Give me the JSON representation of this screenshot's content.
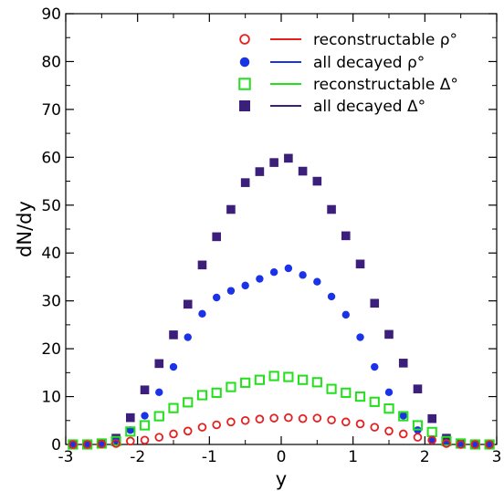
{
  "chart_data": {
    "type": "scatter",
    "xlabel": "y",
    "ylabel": "dN/dy",
    "xlim": [
      -3,
      3
    ],
    "ylim": [
      0,
      90
    ],
    "xticks": [
      "-3",
      "-2",
      "-1",
      "0",
      "1",
      "2",
      "3"
    ],
    "yticks": [
      "0",
      "10",
      "20",
      "30",
      "40",
      "50",
      "60",
      "70",
      "80",
      "90"
    ],
    "grid": false,
    "legend_position": "top-right",
    "series": [
      {
        "name": "all decayed Δ°",
        "marker": "filled-square",
        "color": "#3b1f7a",
        "points": [
          [
            -2.9,
            0.0
          ],
          [
            -2.7,
            0.0
          ],
          [
            -2.5,
            0.2
          ],
          [
            -2.3,
            1.3
          ],
          [
            -2.1,
            5.6
          ],
          [
            -1.9,
            11.4
          ],
          [
            -1.7,
            16.9
          ],
          [
            -1.5,
            22.9
          ],
          [
            -1.3,
            29.3
          ],
          [
            -1.1,
            37.5
          ],
          [
            -0.9,
            43.4
          ],
          [
            -0.7,
            49.1
          ],
          [
            -0.5,
            54.7
          ],
          [
            -0.3,
            57.0
          ],
          [
            -0.1,
            58.9
          ],
          [
            0.1,
            59.8
          ],
          [
            0.3,
            57.1
          ],
          [
            0.5,
            55.0
          ],
          [
            0.7,
            49.1
          ],
          [
            0.9,
            43.6
          ],
          [
            1.1,
            37.7
          ],
          [
            1.3,
            29.5
          ],
          [
            1.5,
            23.0
          ],
          [
            1.7,
            17.0
          ],
          [
            1.9,
            11.6
          ],
          [
            2.1,
            5.4
          ],
          [
            2.3,
            1.3
          ],
          [
            2.5,
            0.2
          ],
          [
            2.7,
            0.0
          ],
          [
            2.9,
            0.0
          ]
        ]
      },
      {
        "name": "all decayed ρ°",
        "marker": "filled-circle",
        "color": "#1a33e6",
        "points": [
          [
            -2.9,
            0.0
          ],
          [
            -2.7,
            0.0
          ],
          [
            -2.5,
            0.1
          ],
          [
            -2.3,
            0.9
          ],
          [
            -2.1,
            3.0
          ],
          [
            -1.9,
            6.0
          ],
          [
            -1.7,
            10.9
          ],
          [
            -1.5,
            16.2
          ],
          [
            -1.3,
            22.4
          ],
          [
            -1.1,
            27.3
          ],
          [
            -0.9,
            30.7
          ],
          [
            -0.7,
            32.1
          ],
          [
            -0.5,
            33.2
          ],
          [
            -0.3,
            34.6
          ],
          [
            -0.1,
            36.0
          ],
          [
            0.1,
            36.8
          ],
          [
            0.3,
            35.4
          ],
          [
            0.5,
            34.0
          ],
          [
            0.7,
            30.9
          ],
          [
            0.9,
            27.1
          ],
          [
            1.1,
            22.4
          ],
          [
            1.3,
            16.2
          ],
          [
            1.5,
            10.9
          ],
          [
            1.7,
            6.0
          ],
          [
            1.9,
            3.0
          ],
          [
            2.1,
            0.9
          ],
          [
            2.3,
            0.1
          ],
          [
            2.5,
            0.0
          ],
          [
            2.7,
            0.0
          ],
          [
            2.9,
            0.0
          ]
        ]
      },
      {
        "name": "reconstructable Δ°",
        "marker": "open-square",
        "color": "#22e01a",
        "points": [
          [
            -2.9,
            0.0
          ],
          [
            -2.7,
            0.0
          ],
          [
            -2.5,
            0.2
          ],
          [
            -2.3,
            0.7
          ],
          [
            -2.1,
            2.7
          ],
          [
            -1.9,
            4.0
          ],
          [
            -1.7,
            5.9
          ],
          [
            -1.5,
            7.6
          ],
          [
            -1.3,
            8.8
          ],
          [
            -1.1,
            10.3
          ],
          [
            -0.9,
            10.8
          ],
          [
            -0.7,
            12.0
          ],
          [
            -0.5,
            12.9
          ],
          [
            -0.3,
            13.5
          ],
          [
            -0.1,
            14.3
          ],
          [
            0.1,
            14.1
          ],
          [
            0.3,
            13.5
          ],
          [
            0.5,
            13.0
          ],
          [
            0.7,
            11.6
          ],
          [
            0.9,
            10.8
          ],
          [
            1.1,
            10.0
          ],
          [
            1.3,
            8.9
          ],
          [
            1.5,
            7.5
          ],
          [
            1.7,
            5.9
          ],
          [
            1.9,
            4.0
          ],
          [
            2.1,
            2.6
          ],
          [
            2.3,
            0.7
          ],
          [
            2.5,
            0.2
          ],
          [
            2.7,
            0.0
          ],
          [
            2.9,
            0.0
          ]
        ]
      },
      {
        "name": "reconstructable ρ°",
        "marker": "open-circle",
        "color": "#e62020",
        "points": [
          [
            -2.9,
            0.0
          ],
          [
            -2.7,
            0.0
          ],
          [
            -2.5,
            0.1
          ],
          [
            -2.3,
            0.2
          ],
          [
            -2.1,
            0.7
          ],
          [
            -1.9,
            0.9
          ],
          [
            -1.7,
            1.5
          ],
          [
            -1.5,
            2.2
          ],
          [
            -1.3,
            2.8
          ],
          [
            -1.1,
            3.6
          ],
          [
            -0.9,
            4.1
          ],
          [
            -0.7,
            4.7
          ],
          [
            -0.5,
            5.0
          ],
          [
            -0.3,
            5.3
          ],
          [
            -0.1,
            5.5
          ],
          [
            0.1,
            5.6
          ],
          [
            0.3,
            5.4
          ],
          [
            0.5,
            5.5
          ],
          [
            0.7,
            5.1
          ],
          [
            0.9,
            4.7
          ],
          [
            1.1,
            4.3
          ],
          [
            1.3,
            3.6
          ],
          [
            1.5,
            2.8
          ],
          [
            1.7,
            2.2
          ],
          [
            1.9,
            1.5
          ],
          [
            2.1,
            0.9
          ],
          [
            2.3,
            0.2
          ],
          [
            2.5,
            0.0
          ],
          [
            2.7,
            0.0
          ],
          [
            2.9,
            0.0
          ]
        ]
      }
    ],
    "legend": [
      {
        "label": "reconstructable ρ°",
        "marker": "open-circle",
        "color": "#e62020"
      },
      {
        "label": "all decayed ρ°",
        "marker": "filled-circle",
        "color": "#1a33e6"
      },
      {
        "label": "reconstructable Δ°",
        "marker": "open-square",
        "color": "#22e01a"
      },
      {
        "label": "all decayed Δ°",
        "marker": "filled-square",
        "color": "#3b1f7a"
      }
    ]
  }
}
